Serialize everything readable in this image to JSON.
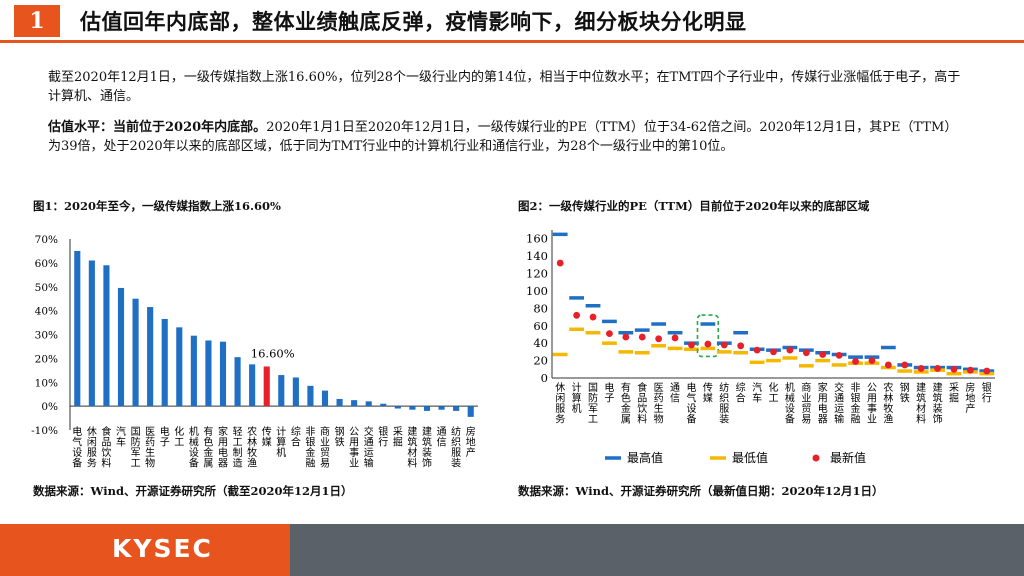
{
  "header": {
    "number": "1",
    "title": "估值回年内底部，整体业绩触底反弹，疫情影响下，细分板块分化明显"
  },
  "body": {
    "p1": "截至2020年12月1日，一级传媒指数上涨16.60%，位列28个一级行业内的第14位，相当于中位数水平；在TMT四个子行业中，传媒行业涨幅低于电子，高于计算机、通信。",
    "p2_lead": "估值水平：当前位于2020年内底部。",
    "p2_rest": "2020年1月1日至2020年12月1日，一级传媒行业的PE（TTM）位于34-62倍之间。2020年12月1日，其PE（TTM）为39倍，处于2020年以来的底部区域，低于同为TMT行业中的计算机行业和通信行业，为28个一级行业中的第10位。"
  },
  "figure1": {
    "title": "图1：2020年至今，一级传媒指数上涨16.60%",
    "source": "数据来源：Wind、开源证券研究所（截至2020年12月1日）"
  },
  "figure2": {
    "title": "图2：一级传媒行业的PE（TTM）目前位于2020年以来的底部区域",
    "source": "数据来源：Wind、开源证券研究所（最新值日期：2020年12月1日）"
  },
  "footer": {
    "logo": "KYSEC"
  },
  "chart_data": [
    {
      "type": "bar",
      "title": "图1：2020年至今，一级传媒指数上涨16.60%",
      "categories": [
        "电气设备",
        "休闲服务",
        "食品饮料",
        "汽车",
        "国防军工",
        "医药生物",
        "电子",
        "化工",
        "机械设备",
        "有色金属",
        "家用电器",
        "轻工制造",
        "农林牧渔",
        "传媒",
        "计算机",
        "综合",
        "非银金融",
        "商业贸易",
        "钢铁",
        "公用事业",
        "交通运输",
        "银行",
        "采掘",
        "建筑材料",
        "建筑装饰",
        "通信",
        "纺织服装",
        "房地产"
      ],
      "values": [
        65.0,
        61.0,
        59.0,
        49.5,
        45.0,
        41.5,
        36.5,
        33.0,
        29.5,
        27.5,
        27.0,
        20.5,
        17.5,
        16.6,
        13.0,
        12.0,
        8.5,
        6.5,
        3.0,
        2.5,
        2.0,
        1.0,
        -1.0,
        -1.5,
        -2.0,
        -1.5,
        -2.0,
        -4.5
      ],
      "highlight": "传媒",
      "highlight_label": "16.60%",
      "ylim": [
        -10,
        70
      ],
      "yticks": [
        "-10%",
        "0%",
        "10%",
        "20%",
        "30%",
        "40%",
        "50%",
        "60%",
        "70%"
      ],
      "colors": {
        "bar": "#1f6fc4",
        "highlight": "#e8202a"
      }
    },
    {
      "type": "scatter",
      "title": "图2：一级传媒行业的PE（TTM）目前位于2020年以来的底部区域",
      "categories": [
        "休闲服务",
        "计算机",
        "国防军工",
        "电子",
        "有色金属",
        "食品饮料",
        "医药生物",
        "通信",
        "电气设备",
        "传媒",
        "纺织服装",
        "综合",
        "汽车",
        "化工",
        "机械设备",
        "商业贸易",
        "家用电器",
        "交通运输",
        "非银金融",
        "公用事业",
        "农林牧渔",
        "钢铁",
        "建筑材料",
        "建筑装饰",
        "采掘",
        "房地产",
        "银行"
      ],
      "series": [
        {
          "name": "最高值",
          "values": [
            165,
            92,
            83,
            65,
            52,
            55,
            62,
            52,
            40,
            62,
            40,
            52,
            33,
            32,
            35,
            32,
            29,
            27,
            24,
            24,
            35,
            15,
            12,
            12,
            12,
            10,
            8
          ]
        },
        {
          "name": "最低值",
          "values": [
            27,
            56,
            52,
            40,
            30,
            29,
            37,
            34,
            33,
            34,
            30,
            29,
            18,
            20,
            23,
            14,
            20,
            15,
            17,
            17,
            12,
            8,
            7,
            9,
            5,
            7,
            5
          ]
        },
        {
          "name": "最新值",
          "values": [
            132,
            72,
            70,
            51,
            47,
            47,
            45,
            46,
            38,
            39,
            38,
            37,
            32,
            30,
            32,
            29,
            27,
            26,
            19,
            20,
            15,
            15,
            11,
            11,
            10,
            9,
            8
          ]
        }
      ],
      "highlight": "传媒",
      "ylim": [
        0,
        170
      ],
      "yticks": [
        "0",
        "20",
        "40",
        "60",
        "80",
        "100",
        "120",
        "140",
        "160"
      ],
      "colors": {
        "最高值": "#1f6fc4",
        "最低值": "#f5b800",
        "最新值": "#e8202a",
        "highlight_box": "#2aa84a"
      }
    }
  ]
}
